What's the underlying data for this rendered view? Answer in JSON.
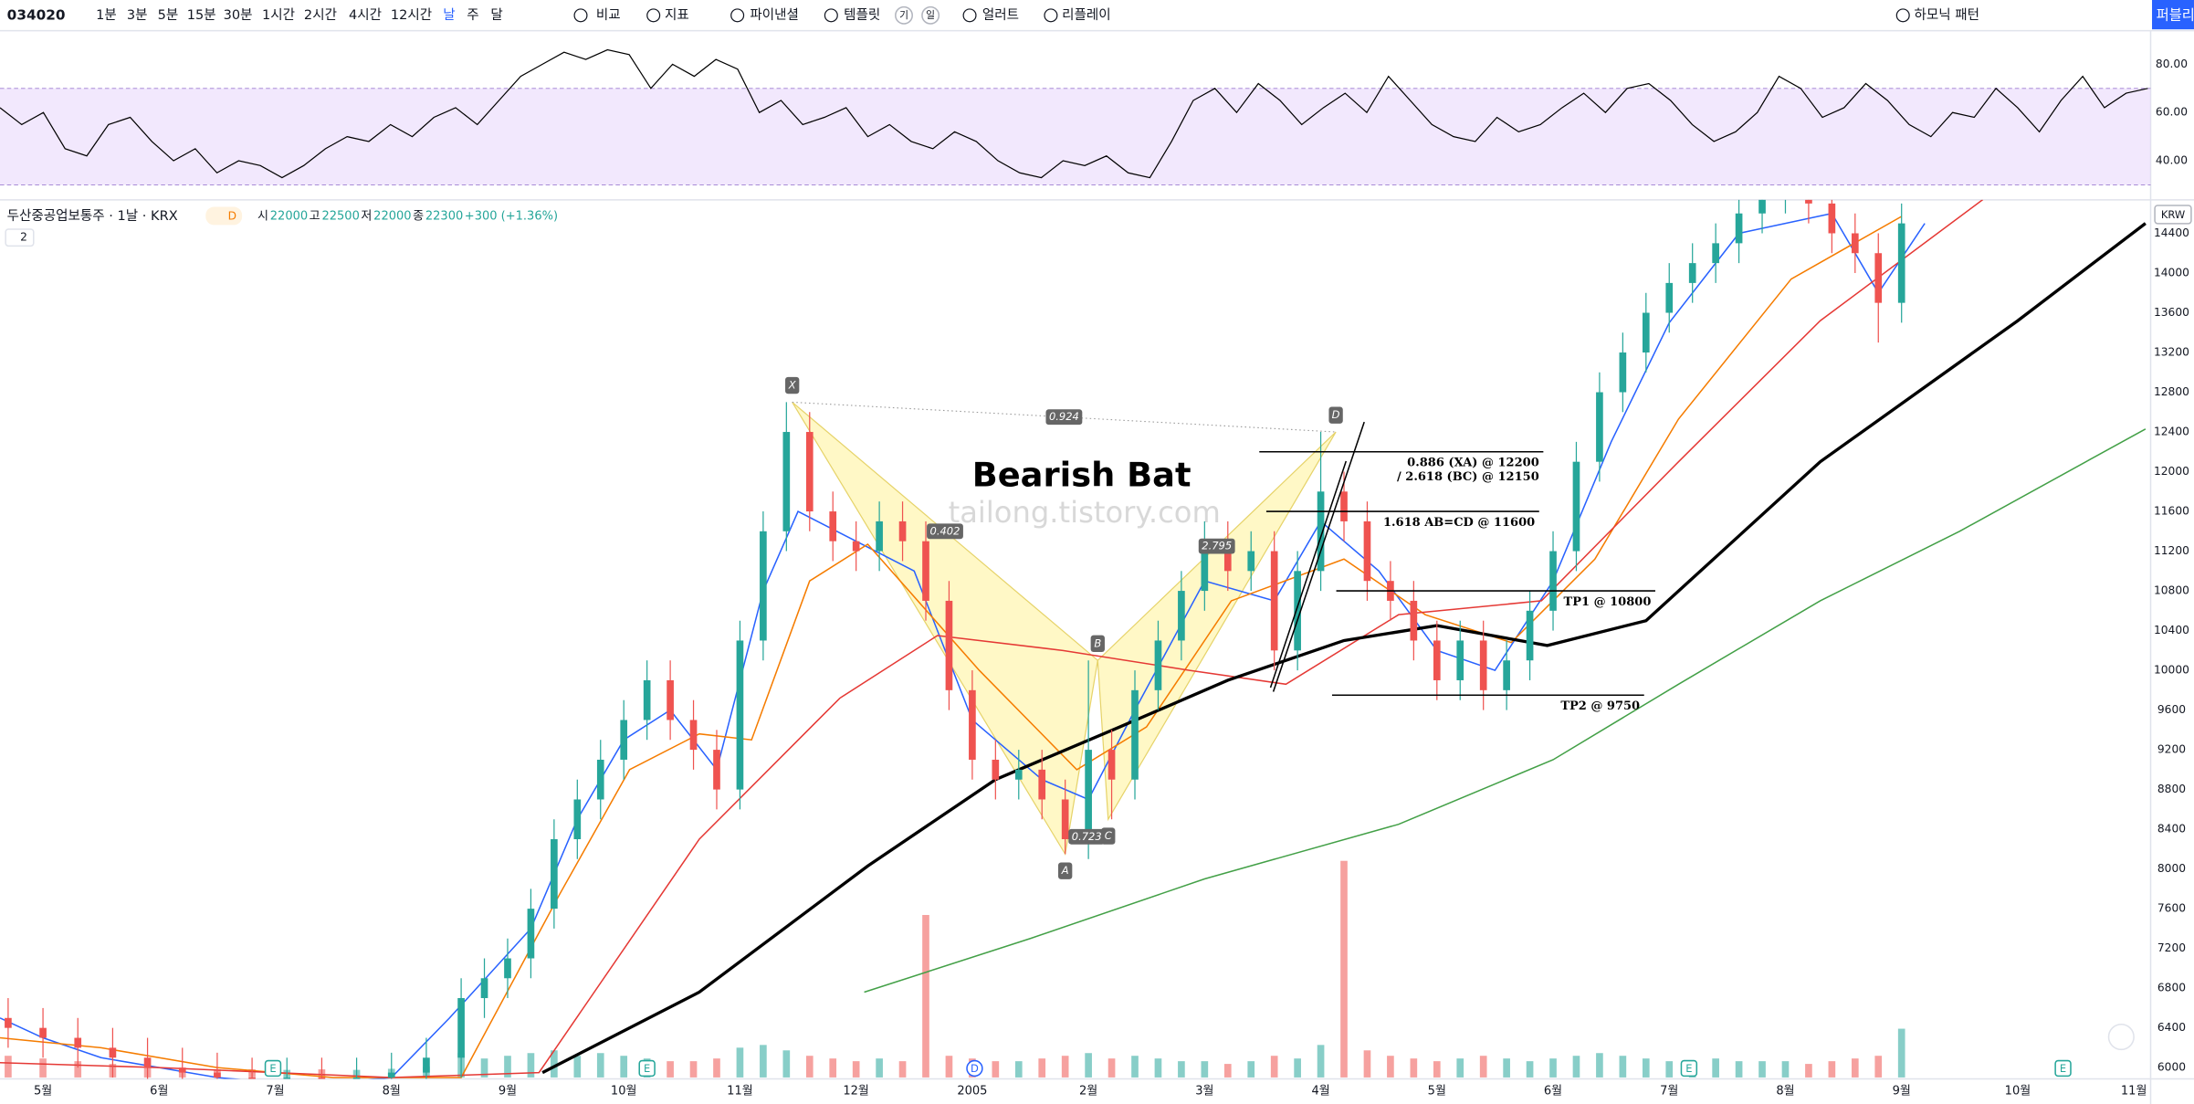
{
  "toolbar": {
    "symbol": "034020",
    "intervals": [
      "1분",
      "3분",
      "5분",
      "15분",
      "30분",
      "1시간",
      "2시간",
      "4시간",
      "12시간",
      "날",
      "주",
      "달"
    ],
    "compare": "비교",
    "indicators": "지표",
    "financials": "파이낸셜",
    "templates": "템플릿",
    "badges": [
      "기",
      "일"
    ],
    "alert": "얼러트",
    "replay": "리플레이",
    "harmonic": "하모닉 패턴",
    "publish": "퍼블리쉬"
  },
  "legend": {
    "title": "두산중공업보통주 · 1날 · KRX",
    "badge": "D",
    "ohlc": [
      [
        "시",
        "22000"
      ],
      [
        "고",
        "22500"
      ],
      [
        "저",
        "22000"
      ],
      [
        "종",
        "22300"
      ]
    ],
    "change": "+300 (+1.36%)",
    "collapse": "2",
    "currency": "KRW"
  },
  "chart_data": [
    {
      "type": "line",
      "color": "#000000",
      "band": [
        30,
        70
      ],
      "band_color": "#e9d8fb",
      "ylim": [
        23.8,
        93.9
      ],
      "yticks": [
        {
          "value": 40,
          "label": "40.00"
        },
        {
          "value": 60,
          "label": "60.00"
        },
        {
          "value": 80,
          "label": "80.00"
        }
      ],
      "values": [
        62,
        55,
        60,
        45,
        42,
        55,
        58,
        48,
        40,
        45,
        35,
        40,
        38,
        33,
        38,
        45,
        50,
        48,
        55,
        50,
        58,
        62,
        55,
        65,
        75,
        80,
        85,
        82,
        86,
        84,
        70,
        80,
        75,
        82,
        78,
        60,
        65,
        55,
        58,
        62,
        50,
        55,
        48,
        45,
        52,
        48,
        40,
        35,
        33,
        40,
        38,
        42,
        35,
        33,
        48,
        65,
        70,
        60,
        72,
        65,
        55,
        62,
        68,
        60,
        75,
        65,
        55,
        50,
        48,
        58,
        52,
        55,
        62,
        68,
        60,
        70,
        72,
        65,
        55,
        48,
        52,
        60,
        75,
        70,
        58,
        62,
        72,
        65,
        55,
        50,
        60,
        58,
        70,
        62,
        52,
        65,
        75,
        62,
        68,
        70
      ]
    },
    {
      "type": "candlestick",
      "title": "Bearish Bat",
      "watermark": "tailong.tistory.com",
      "up_color": "#26a69a",
      "down_color": "#ef5350",
      "grid": false,
      "xlim": [
        -0.37,
        18.12
      ],
      "xticks": [
        {
          "value": 0,
          "label": "5월"
        },
        {
          "value": 1,
          "label": "6월"
        },
        {
          "value": 2,
          "label": "7월"
        },
        {
          "value": 3,
          "label": "8월"
        },
        {
          "value": 4,
          "label": "9월"
        },
        {
          "value": 5,
          "label": "10월"
        },
        {
          "value": 6,
          "label": "11월"
        },
        {
          "value": 7,
          "label": "12월"
        },
        {
          "value": 8,
          "label": "2005"
        },
        {
          "value": 9,
          "label": "2월"
        },
        {
          "value": 10,
          "label": "3월"
        },
        {
          "value": 11,
          "label": "4월"
        },
        {
          "value": 12,
          "label": "5월"
        },
        {
          "value": 13,
          "label": "6월"
        },
        {
          "value": 14,
          "label": "7월"
        },
        {
          "value": 15,
          "label": "8월"
        },
        {
          "value": 16,
          "label": "9월"
        },
        {
          "value": 17,
          "label": "10월"
        },
        {
          "value": 18,
          "label": "11월"
        }
      ],
      "ylim": [
        5887,
        14737
      ],
      "yticks": [
        6000,
        6400,
        6800,
        7200,
        7600,
        8000,
        8400,
        8800,
        9200,
        9600,
        10000,
        10400,
        10800,
        11200,
        11600,
        12000,
        12400,
        12800,
        13200,
        13600,
        14000,
        14400
      ],
      "x": [
        -0.3,
        0,
        0.3,
        0.6,
        0.9,
        1.2,
        1.5,
        1.8,
        2.1,
        2.4,
        2.7,
        3.0,
        3.3,
        3.6,
        3.8,
        4.0,
        4.2,
        4.4,
        4.6,
        4.8,
        5.0,
        5.2,
        5.4,
        5.6,
        5.8,
        6.0,
        6.2,
        6.4,
        6.6,
        6.8,
        7.0,
        7.2,
        7.4,
        7.6,
        7.8,
        8.0,
        8.2,
        8.4,
        8.6,
        8.8,
        9.0,
        9.2,
        9.4,
        9.6,
        9.8,
        10.0,
        10.2,
        10.4,
        10.6,
        10.8,
        11.0,
        11.2,
        11.4,
        11.6,
        11.8,
        12.0,
        12.2,
        12.4,
        12.6,
        12.8,
        13.0,
        13.2,
        13.4,
        13.6,
        13.8,
        14.0,
        14.2,
        14.4,
        14.6,
        14.8,
        15.0,
        15.2,
        15.4,
        15.6,
        15.8,
        16.0
      ],
      "open": [
        6500,
        6400,
        6300,
        6200,
        6100,
        6000,
        5950,
        5900,
        5850,
        5900,
        5850,
        5900,
        5950,
        6100,
        6700,
        6900,
        7100,
        7600,
        8300,
        8700,
        9100,
        9500,
        9900,
        9500,
        9200,
        8800,
        10300,
        11400,
        12400,
        11600,
        11300,
        11200,
        11500,
        11300,
        10700,
        9800,
        9100,
        8900,
        9000,
        8700,
        8300,
        9200,
        8900,
        9800,
        10300,
        10800,
        11300,
        11000,
        11200,
        10200,
        11000,
        11800,
        11500,
        10900,
        10700,
        10300,
        9900,
        10300,
        9800,
        10100,
        10600,
        11200,
        12100,
        12800,
        13200,
        13600,
        13900,
        14100,
        14300,
        14600,
        14800,
        14900,
        14700,
        14400,
        14200,
        13700
      ],
      "high": [
        6700,
        6600,
        6500,
        6400,
        6300,
        6200,
        6150,
        6100,
        6100,
        6100,
        6100,
        6150,
        6300,
        6900,
        7100,
        7300,
        7800,
        8500,
        8900,
        9300,
        9700,
        10100,
        10100,
        9700,
        9400,
        10500,
        11600,
        12700,
        12600,
        11800,
        11500,
        11700,
        11700,
        11500,
        10900,
        10000,
        9300,
        9200,
        9200,
        8900,
        10100,
        9400,
        10000,
        10500,
        11000,
        11500,
        11500,
        11400,
        11400,
        11200,
        12400,
        12000,
        11700,
        11100,
        10900,
        10500,
        10500,
        10500,
        10300,
        10800,
        11400,
        12300,
        13000,
        13400,
        13800,
        14100,
        14300,
        14500,
        14800,
        15000,
        15100,
        15100,
        14900,
        14600,
        14400,
        14700
      ],
      "low": [
        6200,
        6100,
        6000,
        5900,
        5800,
        5750,
        5700,
        5650,
        5650,
        5650,
        5650,
        5700,
        5750,
        5900,
        6500,
        6700,
        6900,
        7400,
        8100,
        8500,
        8900,
        9300,
        9300,
        9000,
        8600,
        8600,
        10100,
        11200,
        11400,
        11100,
        11000,
        11000,
        11100,
        10500,
        9600,
        8900,
        8700,
        8700,
        8500,
        8150,
        8100,
        8500,
        8700,
        9600,
        10100,
        10600,
        10800,
        10800,
        10000,
        10000,
        10800,
        11300,
        10700,
        10500,
        10100,
        9700,
        9700,
        9600,
        9600,
        9900,
        10400,
        11000,
        11900,
        12600,
        13000,
        13400,
        13700,
        13900,
        14100,
        14400,
        14600,
        14500,
        14200,
        14000,
        13300,
        13500
      ],
      "close": [
        6400,
        6300,
        6200,
        6100,
        6000,
        5950,
        5900,
        5850,
        5900,
        5850,
        5900,
        5950,
        6100,
        6700,
        6900,
        7100,
        7600,
        8300,
        8700,
        9100,
        9500,
        9900,
        9500,
        9200,
        8800,
        10300,
        11400,
        12400,
        11600,
        11300,
        11200,
        11500,
        11300,
        10700,
        9800,
        9100,
        8900,
        9000,
        8700,
        8300,
        9200,
        8900,
        9800,
        10300,
        10800,
        11300,
        11000,
        11200,
        10200,
        11000,
        11800,
        11500,
        10900,
        10700,
        10300,
        9900,
        10300,
        9800,
        10100,
        10600,
        11200,
        12100,
        12800,
        13200,
        13600,
        13900,
        14100,
        14300,
        14600,
        14800,
        14900,
        14700,
        14400,
        14200,
        13700,
        14500
      ],
      "volume": [
        40,
        35,
        30,
        25,
        20,
        18,
        15,
        15,
        14,
        15,
        14,
        16,
        20,
        45,
        35,
        40,
        45,
        50,
        40,
        45,
        40,
        35,
        30,
        30,
        35,
        55,
        60,
        50,
        40,
        35,
        30,
        35,
        30,
        300,
        40,
        35,
        30,
        30,
        35,
        40,
        45,
        35,
        40,
        35,
        30,
        30,
        25,
        30,
        40,
        35,
        60,
        400,
        50,
        40,
        35,
        30,
        35,
        40,
        35,
        30,
        35,
        40,
        45,
        40,
        35,
        30,
        30,
        35,
        30,
        30,
        30,
        25,
        30,
        35,
        40,
        90
      ],
      "ma": [
        {
          "color": "#2962ff",
          "x": [
            -0.37,
            0,
            0.5,
            1,
            1.5,
            2,
            2.5,
            3,
            3.5,
            4.2,
            4.6,
            5.0,
            5.4,
            5.8,
            6.2,
            6.5,
            7.0,
            7.5,
            8.0,
            8.6,
            9.0,
            9.4,
            10.0,
            10.6,
            11.0,
            11.5,
            12.0,
            12.5,
            13.0,
            13.5,
            14.0,
            14.6,
            15.4,
            15.8,
            16.2
          ],
          "values": [
            6500,
            6300,
            6100,
            6000,
            5900,
            5850,
            5850,
            5900,
            6500,
            7400,
            8500,
            9300,
            9600,
            9000,
            10800,
            11600,
            11300,
            11000,
            9500,
            8900,
            8700,
            9600,
            10900,
            10700,
            11500,
            11000,
            10200,
            10000,
            10900,
            12300,
            13500,
            14400,
            14600,
            13800,
            14500
          ]
        },
        {
          "color": "#f57c00",
          "x": [
            -0.37,
            0.5,
            1.5,
            2.5,
            3.6,
            4.45,
            5.05,
            5.65,
            6.1,
            6.6,
            7.1,
            8.06,
            8.9,
            9.5,
            10.23,
            11.2,
            11.9,
            12.64,
            13.36,
            14.08,
            15.05,
            16.0
          ],
          "values": [
            6300,
            6200,
            6000,
            5900,
            5900,
            7750,
            9000,
            9360,
            9300,
            10900,
            11270,
            10000,
            9000,
            9430,
            10700,
            11120,
            10560,
            10280,
            11120,
            12530,
            13940,
            14570
          ]
        },
        {
          "color": "#e53935",
          "x": [
            -0.37,
            1,
            2,
            3,
            4.27,
            5.65,
            6.86,
            7.7,
            8.78,
            9.87,
            10.7,
            11.67,
            12.9,
            14.08,
            15.3,
            16.7
          ],
          "values": [
            6050,
            6000,
            5950,
            5900,
            5950,
            8300,
            9720,
            10350,
            10200,
            10000,
            9860,
            10560,
            10700,
            12100,
            13520,
            14740
          ]
        },
        {
          "color": "#000000",
          "x": [
            4.3,
            5.65,
            7.1,
            8.2,
            9.27,
            10.2,
            11.2,
            12.0,
            12.95,
            13.8,
            15.3,
            17.0,
            18.1
          ],
          "values": [
            5950,
            6760,
            8030,
            8900,
            9430,
            9900,
            10300,
            10450,
            10250,
            10500,
            12100,
            13520,
            14500
          ]
        },
        {
          "color": "#43a047",
          "x": [
            7.07,
            8.5,
            10,
            11.67,
            13,
            14.08,
            15.3,
            16.5,
            18.1
          ],
          "values": [
            6760,
            7300,
            7900,
            8450,
            9100,
            9860,
            10700,
            11400,
            12430
          ]
        }
      ],
      "pattern": {
        "points": [
          {
            "label": "X",
            "x": 6.45,
            "y": 12700
          },
          {
            "label": "A",
            "x": 8.8,
            "y": 8150
          },
          {
            "label": "B",
            "x": 9.08,
            "y": 10100
          },
          {
            "label": "C",
            "x": 9.17,
            "y": 8500
          },
          {
            "label": "D",
            "x": 11.13,
            "y": 12400
          }
        ],
        "ratios": [
          {
            "label": "0.924",
            "from": "X",
            "to": "D"
          },
          {
            "label": "0.402",
            "from": "X",
            "to": "B"
          },
          {
            "label": "0.723",
            "from": "A",
            "to": "C"
          },
          {
            "label": "2.795",
            "from": "B",
            "to": "D"
          }
        ]
      },
      "levels": [
        {
          "value": 12200,
          "labels": [
            "0.886 (XA) @ 12200",
            "/ 2.618 (BC) @ 12150"
          ]
        },
        {
          "value": 11600,
          "labels": [
            "1.618 AB=CD @ 11600"
          ]
        },
        {
          "value": 10800,
          "labels": [
            "TP1 @ 10800"
          ]
        },
        {
          "value": 9750,
          "labels": [
            "TP2 @ 9750"
          ]
        }
      ],
      "events": [
        {
          "label": "E",
          "x": 1.98
        },
        {
          "label": "E",
          "x": 5.2
        },
        {
          "label": "D",
          "x": 8.02
        },
        {
          "label": "E",
          "x": 14.17
        },
        {
          "label": "E",
          "x": 17.39
        }
      ]
    }
  ]
}
